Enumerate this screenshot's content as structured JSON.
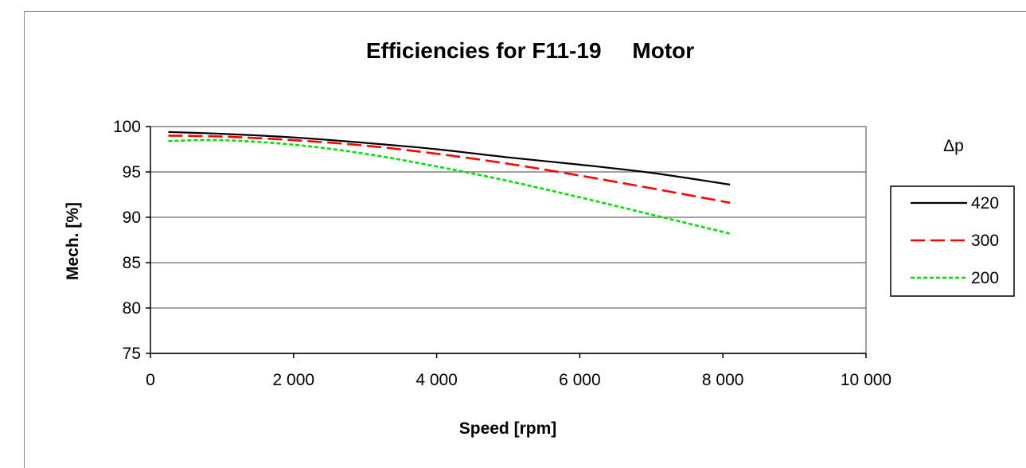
{
  "chart_data": {
    "type": "line",
    "title": "Efficiencies for F11-19     Motor",
    "xlabel": "Speed [rpm]",
    "ylabel": "Mech. [%]",
    "xlim": [
      0,
      10000
    ],
    "ylim": [
      75,
      100
    ],
    "x_ticks": [
      0,
      2000,
      4000,
      6000,
      8000,
      10000
    ],
    "x_tick_labels": [
      "0",
      "2 000",
      "4 000",
      "6 000",
      "8 000",
      "10 000"
    ],
    "y_ticks": [
      75,
      80,
      85,
      90,
      95,
      100
    ],
    "y_tick_labels": [
      "75",
      "80",
      "85",
      "90",
      "95",
      "100"
    ],
    "grid": "horizontal",
    "legend_title": "Δp",
    "legend_position": "right",
    "series": [
      {
        "name": "420",
        "color": "#000000",
        "style": "solid",
        "x": [
          250,
          1000,
          2000,
          3000,
          4000,
          5000,
          6000,
          7000,
          8100
        ],
        "y": [
          99.4,
          99.2,
          98.8,
          98.2,
          97.5,
          96.6,
          95.8,
          94.9,
          93.6
        ]
      },
      {
        "name": "300",
        "color": "#ff0000",
        "style": "dashed",
        "x": [
          250,
          1000,
          2000,
          3000,
          4000,
          5000,
          6000,
          7000,
          8100
        ],
        "y": [
          99.0,
          98.9,
          98.5,
          97.9,
          97.0,
          95.9,
          94.6,
          93.2,
          91.6
        ]
      },
      {
        "name": "200",
        "color": "#00dd00",
        "style": "dotted",
        "x": [
          250,
          1000,
          2000,
          3000,
          4000,
          5000,
          6000,
          7000,
          8100
        ],
        "y": [
          98.4,
          98.5,
          98.0,
          97.0,
          95.6,
          94.0,
          92.2,
          90.3,
          88.2
        ]
      }
    ]
  }
}
